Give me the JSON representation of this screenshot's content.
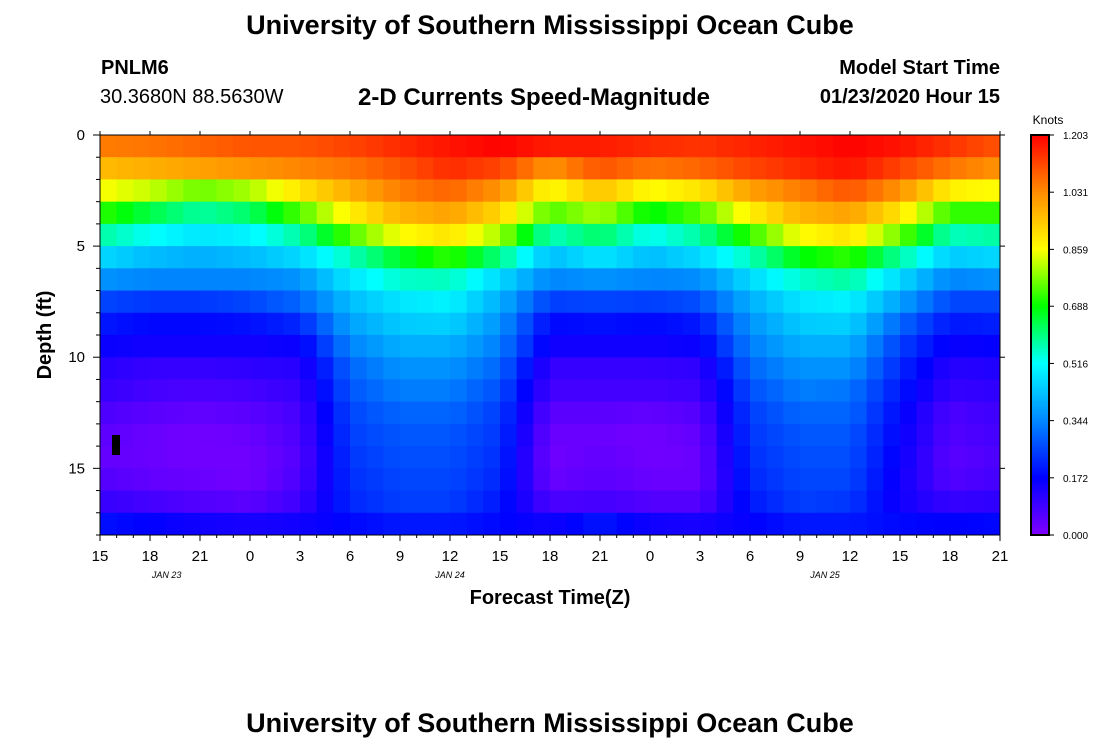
{
  "page": {
    "title_top": "University of Southern Mississippi Ocean Cube",
    "title_bottom": "University of Southern Mississippi Ocean Cube",
    "station_id": "PNLM6",
    "station_coords": "30.3680N 88.5630W",
    "chart_title": "2-D Currents Speed-Magnitude",
    "model_label": "Model Start Time",
    "model_time": "01/23/2020 Hour 15"
  },
  "chart_data": {
    "type": "heatmap",
    "title": "2-D Currents Speed-Magnitude",
    "xlabel": "Forecast Time(Z)",
    "ylabel": "Depth (ft)",
    "x_range_hours": [
      0,
      54
    ],
    "y_range_ft": [
      0,
      18
    ],
    "x_tick_labels": [
      "15",
      "18",
      "21",
      "0",
      "3",
      "6",
      "9",
      "12",
      "15",
      "18",
      "21",
      "0",
      "3",
      "6",
      "9",
      "12",
      "15",
      "18",
      "21"
    ],
    "y_ticks": [
      0,
      5,
      10,
      15
    ],
    "y_tick_labels": [
      "0",
      "5",
      "10",
      "15"
    ],
    "date_labels": [
      {
        "text": "JAN 23",
        "hour": 4
      },
      {
        "text": "JAN 24",
        "hour": 21
      },
      {
        "text": "JAN 25",
        "hour": 43.5
      }
    ],
    "colorbar": {
      "unit": "Knots",
      "min": 0.0,
      "max": 1.203,
      "tick_values": [
        0.0,
        0.172,
        0.344,
        0.516,
        0.688,
        0.859,
        1.031,
        1.203
      ],
      "tick_labels": [
        "0.000",
        "0.172",
        "0.344",
        "0.516",
        "0.688",
        "0.859",
        "1.031",
        "1.203"
      ],
      "colors": [
        "#7f00ff",
        "#0000ff",
        "#0088ff",
        "#00ffff",
        "#00ff00",
        "#ffff00",
        "#ff8c00",
        "#ff0000"
      ]
    },
    "rows_depth_ft": [
      0,
      1,
      2,
      3,
      4,
      5,
      6,
      7,
      8,
      9,
      10,
      11,
      12,
      13,
      14,
      15,
      16,
      17
    ],
    "columns_hour": [
      0,
      3,
      6,
      9,
      12,
      15,
      18,
      21,
      24,
      27,
      30,
      33,
      36,
      39,
      42,
      45,
      48,
      51,
      54
    ],
    "speed_knots": [
      [
        1.05,
        1.06,
        1.08,
        1.1,
        1.1,
        1.12,
        1.15,
        1.18,
        1.2,
        1.17,
        1.17,
        1.15,
        1.14,
        1.16,
        1.18,
        1.2,
        1.18,
        1.14,
        1.1
      ],
      [
        0.96,
        0.98,
        1.0,
        1.02,
        1.04,
        1.06,
        1.1,
        1.15,
        1.12,
        1.02,
        1.1,
        1.06,
        1.08,
        1.12,
        1.15,
        1.18,
        1.12,
        1.06,
        1.02
      ],
      [
        0.86,
        0.82,
        0.76,
        0.8,
        0.9,
        0.98,
        1.05,
        1.08,
        1.02,
        0.86,
        0.95,
        0.86,
        0.9,
        1.0,
        1.05,
        1.1,
        1.02,
        0.88,
        0.86
      ],
      [
        0.72,
        0.64,
        0.58,
        0.62,
        0.74,
        0.88,
        0.97,
        1.0,
        0.92,
        0.74,
        0.8,
        0.68,
        0.74,
        0.88,
        0.97,
        1.0,
        0.9,
        0.72,
        0.72
      ],
      [
        0.58,
        0.52,
        0.48,
        0.5,
        0.58,
        0.74,
        0.86,
        0.9,
        0.8,
        0.56,
        0.62,
        0.52,
        0.58,
        0.72,
        0.86,
        0.9,
        0.76,
        0.56,
        0.58
      ],
      [
        0.46,
        0.42,
        0.4,
        0.42,
        0.46,
        0.56,
        0.66,
        0.72,
        0.6,
        0.42,
        0.48,
        0.42,
        0.46,
        0.56,
        0.68,
        0.72,
        0.58,
        0.44,
        0.46
      ],
      [
        0.36,
        0.34,
        0.34,
        0.34,
        0.36,
        0.48,
        0.55,
        0.56,
        0.46,
        0.34,
        0.36,
        0.34,
        0.35,
        0.46,
        0.55,
        0.58,
        0.46,
        0.34,
        0.36
      ],
      [
        0.26,
        0.24,
        0.24,
        0.26,
        0.3,
        0.42,
        0.48,
        0.5,
        0.4,
        0.25,
        0.26,
        0.25,
        0.27,
        0.4,
        0.48,
        0.5,
        0.38,
        0.26,
        0.26
      ],
      [
        0.2,
        0.18,
        0.18,
        0.19,
        0.22,
        0.38,
        0.44,
        0.45,
        0.36,
        0.18,
        0.19,
        0.18,
        0.2,
        0.36,
        0.44,
        0.45,
        0.3,
        0.2,
        0.21
      ],
      [
        0.16,
        0.15,
        0.15,
        0.15,
        0.16,
        0.34,
        0.4,
        0.4,
        0.33,
        0.15,
        0.15,
        0.15,
        0.16,
        0.33,
        0.4,
        0.4,
        0.25,
        0.16,
        0.17
      ],
      [
        0.12,
        0.1,
        0.1,
        0.11,
        0.12,
        0.3,
        0.36,
        0.36,
        0.3,
        0.1,
        0.1,
        0.1,
        0.11,
        0.3,
        0.36,
        0.36,
        0.22,
        0.12,
        0.13
      ],
      [
        0.1,
        0.08,
        0.07,
        0.08,
        0.1,
        0.28,
        0.33,
        0.33,
        0.27,
        0.08,
        0.08,
        0.08,
        0.09,
        0.27,
        0.33,
        0.32,
        0.2,
        0.1,
        0.11
      ],
      [
        0.07,
        0.05,
        0.04,
        0.05,
        0.08,
        0.26,
        0.3,
        0.3,
        0.25,
        0.05,
        0.05,
        0.04,
        0.06,
        0.25,
        0.3,
        0.3,
        0.18,
        0.07,
        0.09
      ],
      [
        0.05,
        0.03,
        0.02,
        0.03,
        0.07,
        0.25,
        0.28,
        0.28,
        0.24,
        0.03,
        0.03,
        0.02,
        0.04,
        0.24,
        0.28,
        0.28,
        0.17,
        0.06,
        0.08
      ],
      [
        0.04,
        0.03,
        0.02,
        0.02,
        0.06,
        0.24,
        0.27,
        0.27,
        0.23,
        0.02,
        0.04,
        0.02,
        0.03,
        0.23,
        0.27,
        0.27,
        0.16,
        0.05,
        0.07
      ],
      [
        0.06,
        0.04,
        0.03,
        0.02,
        0.07,
        0.23,
        0.26,
        0.26,
        0.22,
        0.03,
        0.05,
        0.03,
        0.03,
        0.22,
        0.26,
        0.26,
        0.15,
        0.06,
        0.08
      ],
      [
        0.1,
        0.08,
        0.06,
        0.05,
        0.09,
        0.22,
        0.25,
        0.25,
        0.2,
        0.07,
        0.08,
        0.06,
        0.06,
        0.2,
        0.25,
        0.24,
        0.15,
        0.1,
        0.11
      ],
      [
        0.19,
        0.17,
        0.15,
        0.14,
        0.15,
        0.18,
        0.2,
        0.2,
        0.18,
        0.15,
        0.2,
        0.15,
        0.14,
        0.17,
        0.2,
        0.2,
        0.18,
        0.17,
        0.18
      ]
    ]
  }
}
